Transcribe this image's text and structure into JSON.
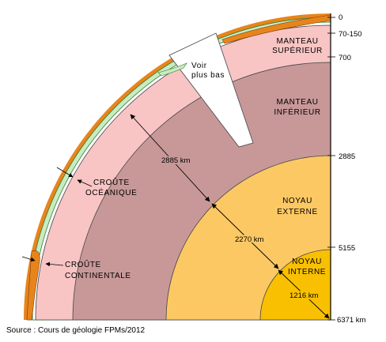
{
  "layers": {
    "manteau_superieur": [
      "MANTEAU",
      "SUPÉRIEUR"
    ],
    "manteau_inferieur": [
      "MANTEAU",
      "INFÉRIEUR"
    ],
    "noyau_externe": [
      "NOYAU",
      "EXTERNE"
    ],
    "noyau_interne": [
      "NOYAU",
      "INTERNE"
    ],
    "croute_oceanique": [
      "CROÛTE",
      "OCÉANIQUE"
    ],
    "croute_continentale": [
      "CROÛTE",
      "CONTINENTALE"
    ]
  },
  "depths": [
    "0",
    "70-150",
    "700",
    "2885",
    "5155",
    "6371 km"
  ],
  "distances": {
    "mantle": "2885 km",
    "outer_core": "2270 km",
    "inner_core": "1216 km"
  },
  "callout": [
    "Voir",
    "plus bas"
  ],
  "source": "Source : Cours de géologie FPMs/2012",
  "colors": {
    "crust": "#e8841c",
    "lithosphere_green": "#c9ebc0",
    "upper_mantle": "#f8c4c4",
    "lower_mantle": "#c89898",
    "outer_core": "#fcc864",
    "inner_core": "#f8c000"
  }
}
